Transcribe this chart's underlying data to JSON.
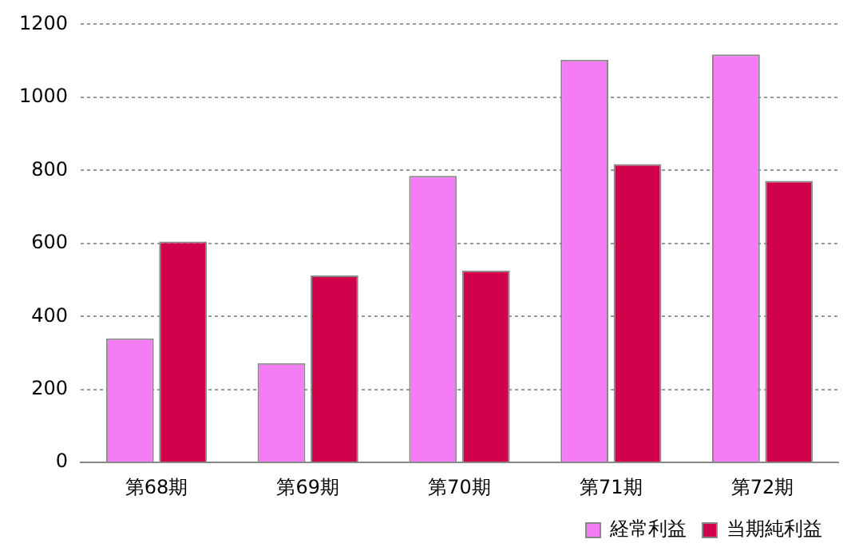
{
  "chart_data": {
    "type": "bar",
    "categories": [
      "第68期",
      "第69期",
      "第70期",
      "第71期",
      "第72期"
    ],
    "series": [
      {
        "name": "経常利益",
        "color": "#f47cf4",
        "values": [
          340,
          272,
          785,
          1103,
          1117
        ]
      },
      {
        "name": "当期純利益",
        "color": "#d0004a",
        "values": [
          605,
          512,
          526,
          817,
          771
        ]
      }
    ],
    "ylim": [
      0,
      1200
    ],
    "yticks": [
      0,
      200,
      400,
      600,
      800,
      1000,
      1200
    ],
    "grid": "y",
    "legend": "bottom right"
  }
}
